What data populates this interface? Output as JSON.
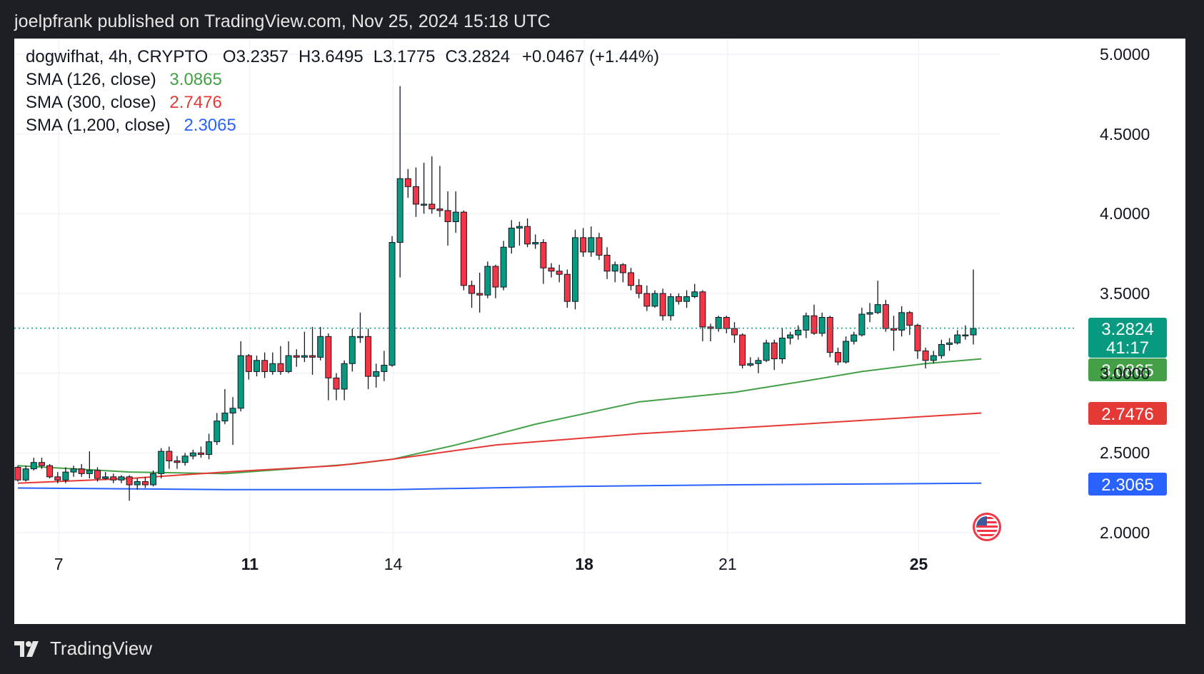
{
  "header": {
    "text": "joelpfrank published on TradingView.com, Nov 25, 2024 15:18 UTC"
  },
  "legend": {
    "symbol": "dogwifhat, 4h, CRYPTO",
    "ohlc": [
      {
        "label": "O",
        "value": "3.2357"
      },
      {
        "label": "H",
        "value": "3.6495"
      },
      {
        "label": "L",
        "value": "3.1775"
      },
      {
        "label": "C",
        "value": "3.2824"
      }
    ],
    "change": "+0.0467 (+1.44%)",
    "sma": [
      {
        "label": "SMA (126, close)",
        "value": "3.0865",
        "color": "#43a047"
      },
      {
        "label": "SMA (300, close)",
        "value": "2.7476",
        "color": "#e53935"
      },
      {
        "label": "SMA (1,200, close)",
        "value": "2.3065",
        "color": "#2962ff"
      }
    ]
  },
  "price_badges": {
    "last": "3.2824",
    "countdown": "41:17",
    "last_color": "#089981",
    "sma126": "3.0865",
    "sma300": "2.7476",
    "sma1200": "2.3065"
  },
  "footer": {
    "brand": "TradingView"
  },
  "flag_icon": "us-flag-icon",
  "chart_data": {
    "type": "candlestick",
    "symbol": "dogwifhat",
    "interval": "4h",
    "y_axis": {
      "ticks": [
        "5.0000",
        "4.5000",
        "4.0000",
        "3.5000",
        "3.0000",
        "2.5000",
        "2.0000"
      ],
      "ylim": [
        2.0,
        5.0
      ]
    },
    "x_axis": {
      "ticks": [
        {
          "label": "7",
          "bold": false,
          "index": 2
        },
        {
          "label": "11",
          "bold": true,
          "index": 26
        },
        {
          "label": "14",
          "bold": false,
          "index": 44
        },
        {
          "label": "18",
          "bold": true,
          "index": 68
        },
        {
          "label": "21",
          "bold": false,
          "index": 86
        },
        {
          "label": "25",
          "bold": true,
          "index": 110
        }
      ]
    },
    "grid": true,
    "up_color": "#089981",
    "down_color": "#f23645",
    "candles": [
      [
        2.41,
        2.33,
        2.42,
        2.32
      ],
      [
        2.33,
        2.4,
        2.42,
        2.32
      ],
      [
        2.4,
        2.44,
        2.47,
        2.39
      ],
      [
        2.44,
        2.42,
        2.47,
        2.4
      ],
      [
        2.42,
        2.35,
        2.43,
        2.34
      ],
      [
        2.35,
        2.33,
        2.38,
        2.31
      ],
      [
        2.33,
        2.38,
        2.41,
        2.31
      ],
      [
        2.38,
        2.4,
        2.42,
        2.35
      ],
      [
        2.4,
        2.37,
        2.43,
        2.35
      ],
      [
        2.37,
        2.39,
        2.51,
        2.34
      ],
      [
        2.39,
        2.34,
        2.41,
        2.32
      ],
      [
        2.34,
        2.35,
        2.38,
        2.33
      ],
      [
        2.35,
        2.33,
        2.37,
        2.31
      ],
      [
        2.33,
        2.35,
        2.36,
        2.31
      ],
      [
        2.35,
        2.3,
        2.36,
        2.2
      ],
      [
        2.3,
        2.32,
        2.34,
        2.27
      ],
      [
        2.32,
        2.3,
        2.35,
        2.28
      ],
      [
        2.3,
        2.37,
        2.39,
        2.29
      ],
      [
        2.37,
        2.51,
        2.53,
        2.34
      ],
      [
        2.51,
        2.45,
        2.54,
        2.4
      ],
      [
        2.45,
        2.44,
        2.48,
        2.4
      ],
      [
        2.44,
        2.48,
        2.5,
        2.42
      ],
      [
        2.48,
        2.5,
        2.52,
        2.46
      ],
      [
        2.5,
        2.49,
        2.54,
        2.47
      ],
      [
        2.49,
        2.57,
        2.62,
        2.46
      ],
      [
        2.57,
        2.7,
        2.75,
        2.55
      ],
      [
        2.7,
        2.75,
        2.9,
        2.68
      ],
      [
        2.75,
        2.78,
        2.85,
        2.55
      ],
      [
        2.78,
        3.11,
        3.2,
        2.76
      ],
      [
        3.11,
        3.01,
        3.12,
        2.96
      ],
      [
        3.01,
        3.08,
        3.11,
        2.98
      ],
      [
        3.08,
        3.01,
        3.13,
        2.97
      ],
      [
        3.01,
        3.06,
        3.13,
        2.99
      ],
      [
        3.06,
        3.01,
        3.17,
        2.99
      ],
      [
        3.01,
        3.11,
        3.2,
        3.0
      ],
      [
        3.11,
        3.1,
        3.15,
        3.04
      ],
      [
        3.1,
        3.11,
        3.26,
        3.07
      ],
      [
        3.11,
        3.1,
        3.29,
        2.99
      ],
      [
        3.1,
        3.23,
        3.29,
        3.08
      ],
      [
        3.23,
        2.97,
        3.25,
        2.83
      ],
      [
        2.97,
        2.9,
        3.0,
        2.83
      ],
      [
        2.9,
        3.06,
        3.08,
        2.83
      ],
      [
        3.06,
        3.23,
        3.28,
        3.01
      ],
      [
        3.23,
        3.23,
        3.38,
        3.19
      ],
      [
        3.23,
        2.98,
        3.28,
        2.9
      ],
      [
        2.98,
        3.01,
        3.06,
        2.91
      ],
      [
        3.01,
        3.05,
        3.14,
        2.95
      ],
      [
        3.05,
        3.82,
        3.86,
        3.04
      ],
      [
        3.82,
        4.22,
        4.8,
        3.6
      ],
      [
        4.22,
        4.17,
        4.28,
        4.1
      ],
      [
        4.17,
        4.06,
        4.29,
        3.98
      ],
      [
        4.06,
        4.06,
        4.32,
        4.0
      ],
      [
        4.06,
        4.03,
        4.36,
        4.0
      ],
      [
        4.03,
        4.02,
        4.3,
        3.98
      ],
      [
        4.02,
        3.95,
        4.14,
        3.8
      ],
      [
        3.95,
        4.01,
        4.14,
        3.88
      ],
      [
        4.01,
        3.55,
        4.02,
        3.52
      ],
      [
        3.55,
        3.5,
        3.58,
        3.41
      ],
      [
        3.5,
        3.49,
        3.63,
        3.38
      ],
      [
        3.49,
        3.67,
        3.7,
        3.47
      ],
      [
        3.67,
        3.54,
        3.68,
        3.47
      ],
      [
        3.54,
        3.79,
        3.83,
        3.52
      ],
      [
        3.79,
        3.91,
        3.96,
        3.75
      ],
      [
        3.91,
        3.92,
        3.95,
        3.8
      ],
      [
        3.92,
        3.81,
        3.97,
        3.79
      ],
      [
        3.81,
        3.82,
        3.87,
        3.78
      ],
      [
        3.82,
        3.66,
        3.84,
        3.56
      ],
      [
        3.66,
        3.64,
        3.69,
        3.6
      ],
      [
        3.64,
        3.62,
        3.68,
        3.57
      ],
      [
        3.62,
        3.45,
        3.65,
        3.41
      ],
      [
        3.45,
        3.85,
        3.9,
        3.4
      ],
      [
        3.85,
        3.76,
        3.91,
        3.73
      ],
      [
        3.76,
        3.85,
        3.92,
        3.73
      ],
      [
        3.85,
        3.74,
        3.88,
        3.71
      ],
      [
        3.74,
        3.64,
        3.79,
        3.59
      ],
      [
        3.64,
        3.68,
        3.7,
        3.57
      ],
      [
        3.68,
        3.63,
        3.69,
        3.57
      ],
      [
        3.63,
        3.55,
        3.66,
        3.52
      ],
      [
        3.55,
        3.5,
        3.59,
        3.47
      ],
      [
        3.5,
        3.42,
        3.55,
        3.39
      ],
      [
        3.42,
        3.5,
        3.52,
        3.41
      ],
      [
        3.5,
        3.36,
        3.53,
        3.33
      ],
      [
        3.36,
        3.48,
        3.5,
        3.33
      ],
      [
        3.48,
        3.45,
        3.5,
        3.43
      ],
      [
        3.45,
        3.48,
        3.52,
        3.41
      ],
      [
        3.48,
        3.51,
        3.56,
        3.47
      ],
      [
        3.51,
        3.29,
        3.52,
        3.2
      ],
      [
        3.29,
        3.28,
        3.31,
        3.2
      ],
      [
        3.28,
        3.35,
        3.36,
        3.26
      ],
      [
        3.35,
        3.28,
        3.36,
        3.25
      ],
      [
        3.28,
        3.24,
        3.32,
        3.19
      ],
      [
        3.24,
        3.05,
        3.25,
        3.03
      ],
      [
        3.05,
        3.06,
        3.1,
        3.04
      ],
      [
        3.06,
        3.08,
        3.1,
        3.0
      ],
      [
        3.08,
        3.19,
        3.21,
        3.07
      ],
      [
        3.19,
        3.09,
        3.21,
        3.02
      ],
      [
        3.09,
        3.22,
        3.28,
        3.06
      ],
      [
        3.22,
        3.24,
        3.26,
        3.18
      ],
      [
        3.24,
        3.27,
        3.3,
        3.21
      ],
      [
        3.27,
        3.36,
        3.38,
        3.22
      ],
      [
        3.36,
        3.25,
        3.43,
        3.24
      ],
      [
        3.25,
        3.35,
        3.38,
        3.23
      ],
      [
        3.35,
        3.13,
        3.36,
        3.1
      ],
      [
        3.13,
        3.07,
        3.16,
        3.05
      ],
      [
        3.07,
        3.2,
        3.23,
        3.06
      ],
      [
        3.2,
        3.24,
        3.26,
        3.18
      ],
      [
        3.24,
        3.37,
        3.41,
        3.23
      ],
      [
        3.37,
        3.38,
        3.44,
        3.32
      ],
      [
        3.38,
        3.43,
        3.58,
        3.37
      ],
      [
        3.43,
        3.28,
        3.46,
        3.26
      ],
      [
        3.28,
        3.27,
        3.36,
        3.14
      ],
      [
        3.27,
        3.38,
        3.42,
        3.23
      ],
      [
        3.38,
        3.3,
        3.39,
        3.24
      ],
      [
        3.3,
        3.14,
        3.31,
        3.09
      ],
      [
        3.14,
        3.08,
        3.16,
        3.03
      ],
      [
        3.08,
        3.11,
        3.14,
        3.06
      ],
      [
        3.11,
        3.18,
        3.21,
        3.09
      ],
      [
        3.18,
        3.19,
        3.22,
        3.14
      ],
      [
        3.19,
        3.24,
        3.27,
        3.18
      ],
      [
        3.24,
        3.24,
        3.3,
        3.21
      ],
      [
        3.24,
        3.28,
        3.65,
        3.18
      ]
    ],
    "sma_lines": [
      {
        "name": "SMA (126, close)",
        "color": "#43a047",
        "points": [
          [
            0,
            2.42
          ],
          [
            14,
            2.38
          ],
          [
            26,
            2.37
          ],
          [
            34,
            2.4
          ],
          [
            42,
            2.43
          ],
          [
            47,
            2.46
          ],
          [
            55,
            2.55
          ],
          [
            65,
            2.68
          ],
          [
            78,
            2.82
          ],
          [
            90,
            2.88
          ],
          [
            100,
            2.96
          ],
          [
            106,
            3.01
          ],
          [
            114,
            3.06
          ],
          [
            121,
            3.09
          ]
        ]
      },
      {
        "name": "SMA (300, close)",
        "color": "#e53935",
        "points": [
          [
            0,
            2.31
          ],
          [
            14,
            2.34
          ],
          [
            26,
            2.38
          ],
          [
            40,
            2.42
          ],
          [
            47,
            2.46
          ],
          [
            60,
            2.55
          ],
          [
            78,
            2.62
          ],
          [
            95,
            2.67
          ],
          [
            121,
            2.75
          ]
        ]
      },
      {
        "name": "SMA (1,200, close)",
        "color": "#2962ff",
        "points": [
          [
            0,
            2.28
          ],
          [
            26,
            2.27
          ],
          [
            47,
            2.27
          ],
          [
            70,
            2.29
          ],
          [
            90,
            2.3
          ],
          [
            121,
            2.31
          ]
        ]
      }
    ],
    "last_price": 3.2824
  }
}
